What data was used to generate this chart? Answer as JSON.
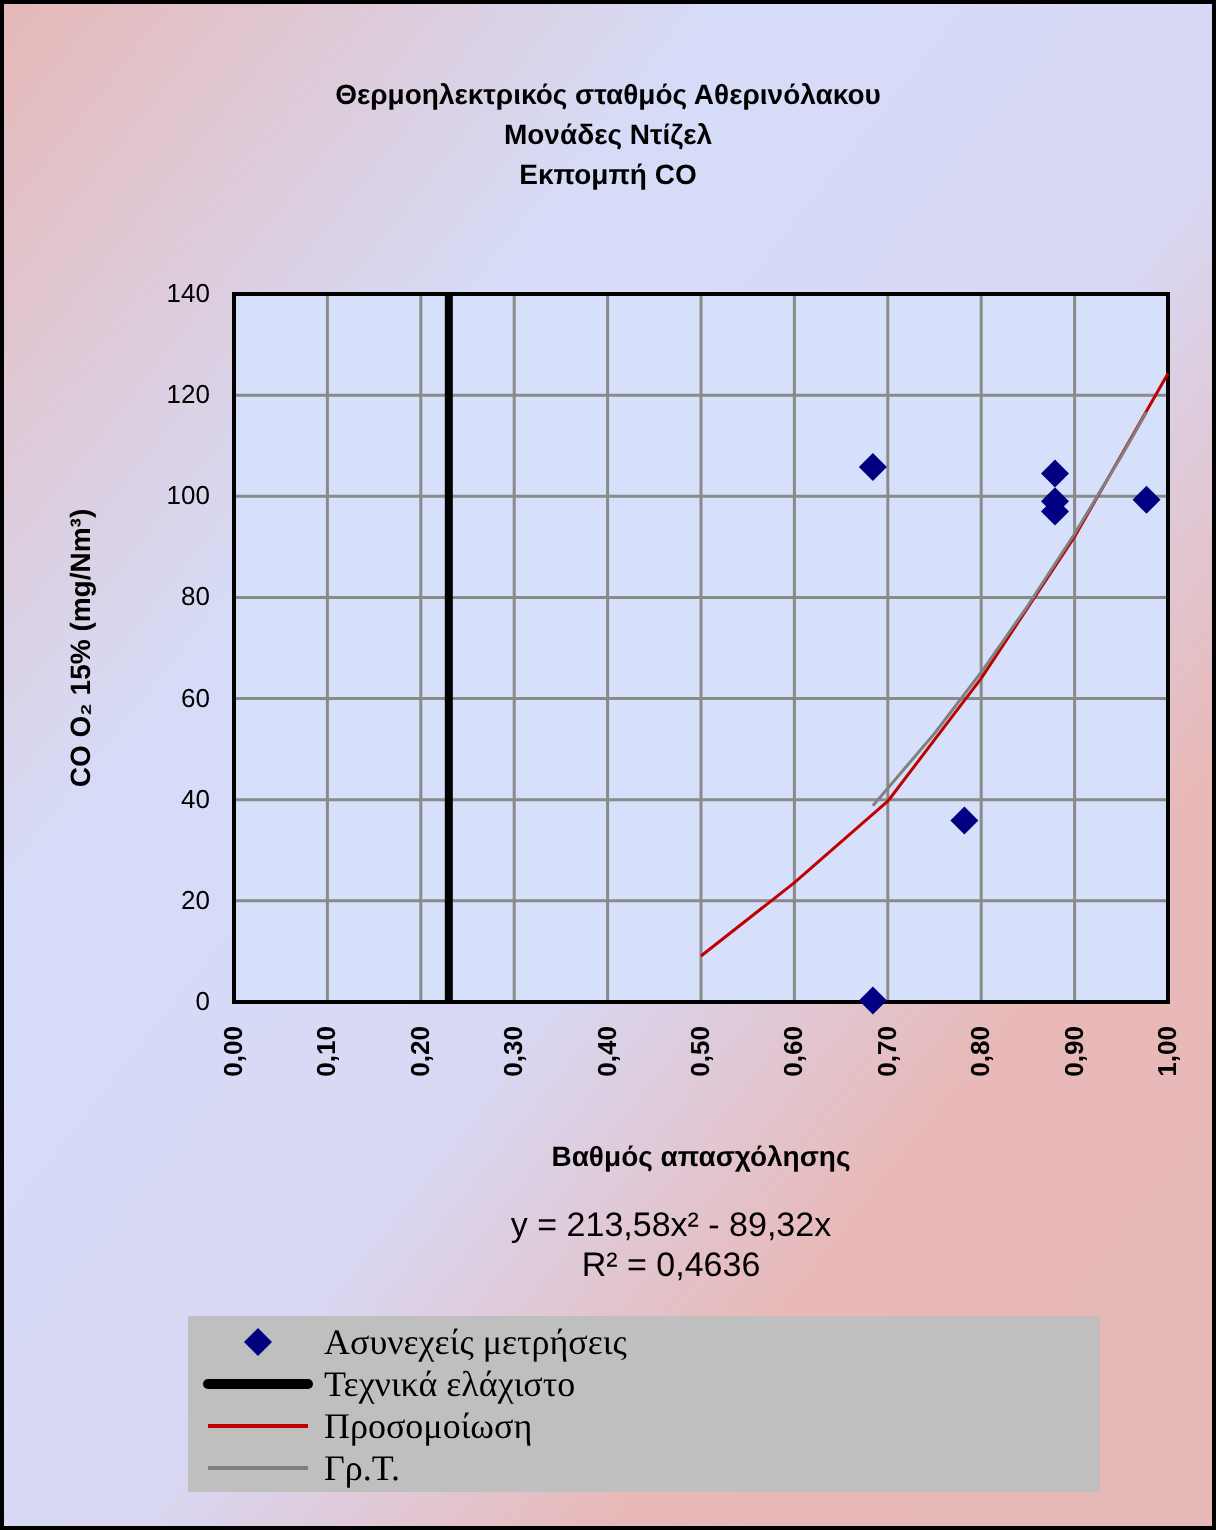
{
  "chart_data": {
    "type": "scatter",
    "title": "Θερμοηλεκτρικός σταθμός Αθερινόλακου\nΜονάδες Ντίζελ\nΕκπομπή CO",
    "xlabel": "Βαθμός απασχόλησης",
    "ylabel": "CO  O₂ 15% (mg/Nm³)",
    "annotations": [
      "y = 213,58x² - 89,32x",
      "R² = 0,4636"
    ],
    "xlim": [
      0,
      1
    ],
    "xticks": [
      {
        "value": 0,
        "label": "0,00"
      },
      {
        "value": 0.1,
        "label": "0,10"
      },
      {
        "value": 0.2,
        "label": "0,20"
      },
      {
        "value": 0.3,
        "label": "0,30"
      },
      {
        "value": 0.4,
        "label": "0,40"
      },
      {
        "value": 0.5,
        "label": "0,50"
      },
      {
        "value": 0.6,
        "label": "0,60"
      },
      {
        "value": 0.7,
        "label": "0,70"
      },
      {
        "value": 0.8,
        "label": "0,80"
      },
      {
        "value": 0.9,
        "label": "0,90"
      },
      {
        "value": 1,
        "label": "1,00"
      }
    ],
    "ylim": [
      0,
      140
    ],
    "yticks": [
      0,
      20,
      40,
      60,
      80,
      100,
      120,
      140
    ],
    "grid": true,
    "legend": "bottom",
    "series": [
      {
        "name": "Ασυνεχείς μετρήσεις",
        "marker": "diamond",
        "color": "#000080",
        "x": [
          0.684,
          0.684,
          0.782,
          0.879,
          0.879,
          0.879,
          0.977
        ],
        "values": [
          105.8,
          0.3,
          35.9,
          104.5,
          99,
          97,
          99.3
        ]
      },
      {
        "name": "Τεχνικά ελάχιστο",
        "type": "line",
        "color": "#000000",
        "x": [
          0.23,
          0.23
        ],
        "values": [
          0,
          140
        ]
      },
      {
        "name": "Προσομοίωση",
        "type": "line",
        "color": "#c00000",
        "x": [
          0.5,
          0.6,
          0.7,
          0.8,
          0.9,
          1.0
        ],
        "values": [
          9.1,
          23.6,
          39.7,
          64,
          92,
          124.3
        ]
      },
      {
        "name": "Γρ.Τ.",
        "type": "line",
        "color": "#808080",
        "x": [
          0.684,
          0.75,
          0.8,
          0.85,
          0.9,
          0.95,
          0.977
        ],
        "values": [
          38.8,
          53.1,
          65.2,
          78.4,
          92.6,
          107.9,
          116.6
        ]
      }
    ]
  }
}
